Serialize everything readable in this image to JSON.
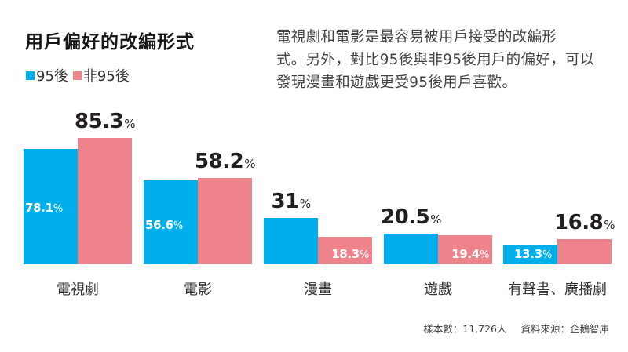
{
  "title": "用戶偏好的改編形式",
  "legend": [
    {
      "label": "95後",
      "color": "#00AEEB"
    },
    {
      "label": "非95後",
      "color": "#EE838C"
    }
  ],
  "description": [
    "電視劇和電影是最容易被用戶接受的改編形",
    "式。另外，對比95後與非95後用戶的偏好，可以",
    "發現漫畫和遊戲更受95後用戶喜歡。"
  ],
  "footer": {
    "sample": "樣本數：11,726人",
    "source": "資料來源：企鵝智庫"
  },
  "chart_data": {
    "type": "bar",
    "title": "用戶偏好的改編形式",
    "xlabel": "",
    "ylabel": "",
    "unit": "%",
    "categories": [
      "電視劇",
      "電影",
      "漫畫",
      "遊戲",
      "有聲書、廣播劇"
    ],
    "series": [
      {
        "name": "95後",
        "color": "#00AEEB",
        "values": [
          78.1,
          56.6,
          31,
          20.5,
          13.3
        ]
      },
      {
        "name": "非95後",
        "color": "#EE838C",
        "values": [
          85.3,
          58.2,
          18.3,
          19.4,
          16.8
        ]
      }
    ],
    "value_labels": [
      [
        "78.1",
        "85.3"
      ],
      [
        "56.6",
        "58.2"
      ],
      [
        "31",
        "18.3"
      ],
      [
        "20.5",
        "19.4"
      ],
      [
        "13.3",
        "16.8"
      ]
    ],
    "highlighted_label": [
      "non95",
      "non95",
      "95",
      "95",
      "non95"
    ],
    "grid": false,
    "legend_position": "top-left",
    "ylim": [
      0,
      100
    ]
  },
  "pct_symbol": "%"
}
